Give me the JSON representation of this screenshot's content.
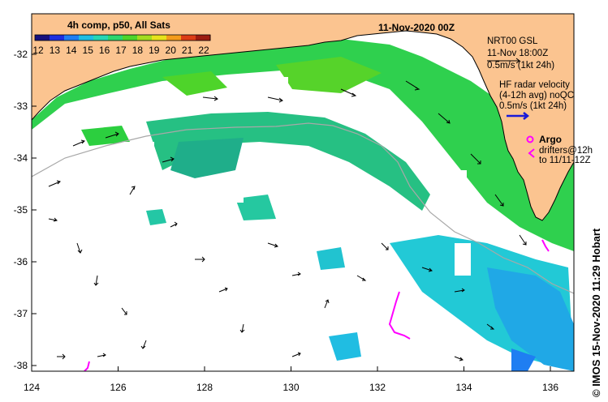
{
  "map": {
    "composite_label": "4h comp, p50, All Sats",
    "datetime_label": "11-Nov-2020 00Z",
    "colorbar_ticks": [
      "12",
      "13",
      "14",
      "15",
      "16",
      "17",
      "18",
      "19",
      "20",
      "21",
      "22"
    ],
    "colorbar_colors": [
      "#16107e",
      "#1d2ee0",
      "#1f7ef2",
      "#20bde2",
      "#27d6b4",
      "#2dd66e",
      "#4ed42a",
      "#a2dc1f",
      "#e7e21b",
      "#f39b1b",
      "#dc3c15",
      "#9c1b10"
    ],
    "nrt_line1": "NRT00 GSL",
    "nrt_line2": "11-Nov 18:00Z",
    "nrt_line3": "0.5m/s (1kt 24h)",
    "hf_line1": "HF radar velocity",
    "hf_line2": "(4-12h avg) noQC",
    "hf_line3": "0.5m/s (1kt 24h)",
    "argo_label": "Argo",
    "drifters_line1": "drifters@12h",
    "drifters_line2": "to 11/11-12Z",
    "credit": "© IMOS 15-Nov-2020 11:29 Hobart",
    "lat_ticks": [
      "-32",
      "-33",
      "-34",
      "-35",
      "-36",
      "-37",
      "-38"
    ],
    "lon_ticks": [
      "124",
      "126",
      "128",
      "130",
      "132",
      "134",
      "136"
    ],
    "colors": {
      "land": "#fbc490",
      "ocean_nodata": "#ffffff",
      "argo_marker": "#ff00ff",
      "hf_arrow": "#1a1ad8"
    }
  }
}
